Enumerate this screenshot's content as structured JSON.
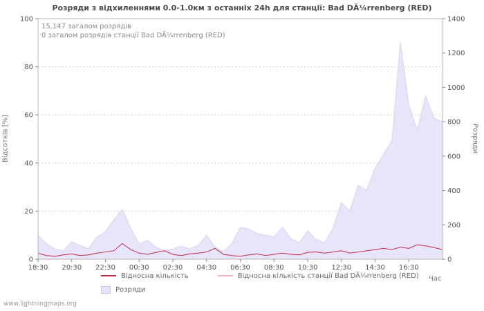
{
  "page": {
    "footer_link": "www.lightningmaps.org"
  },
  "chart_data": {
    "type": "area",
    "title": "Розряди з відхиленнями 0.0-1.0км з останніх 24h для станції: Bad DÃ¼rrenberg (RED)",
    "annotations": [
      "15,147 загалом розрядів",
      "0 загалом розрядів станції Bad DÃ¼rrenberg (RED)"
    ],
    "x_label": "Час",
    "y_left_label": "Відсотків  [%]",
    "y_right_label": "Розряди",
    "y_left_max": 100,
    "y_right_max": 1400,
    "y_left_ticks": [
      0,
      20,
      40,
      60,
      80,
      100
    ],
    "y_right_ticks": [
      0,
      200,
      400,
      600,
      800,
      1000,
      1200,
      1400
    ],
    "x_ticks": [
      "18:30",
      "20:30",
      "22:30",
      "00:30",
      "02:30",
      "04:30",
      "06:30",
      "08:30",
      "10:30",
      "12:30",
      "14:30",
      "16:30"
    ],
    "x_tick_interval_hours": 2,
    "x_span_hours": 24,
    "point_interval_hours": 0.5,
    "grid": "horizontal-dashed",
    "legend_position": "bottom",
    "series": [
      {
        "name": "Розряди",
        "kind": "area",
        "axis": "right",
        "color": "#e7e5fa",
        "edge": "#d6d2f2",
        "values": [
          140,
          90,
          60,
          50,
          100,
          80,
          60,
          130,
          160,
          230,
          290,
          180,
          90,
          110,
          70,
          50,
          60,
          75,
          60,
          80,
          140,
          70,
          45,
          90,
          185,
          175,
          150,
          140,
          130,
          185,
          120,
          95,
          165,
          115,
          95,
          180,
          330,
          280,
          430,
          400,
          530,
          610,
          690,
          1260,
          900,
          750,
          950,
          820,
          800
        ]
      },
      {
        "name": "Відносна кількість",
        "kind": "line",
        "axis": "left",
        "color": "#c62847",
        "values": [
          2.5,
          1.5,
          1.2,
          1.8,
          2.2,
          1.5,
          1.8,
          2.5,
          3,
          3.5,
          6.5,
          4,
          2.5,
          2,
          2.8,
          3.5,
          2,
          1.5,
          2.2,
          2.5,
          3,
          4.5,
          2,
          1.5,
          1.2,
          1.8,
          2.2,
          1.5,
          2,
          2.5,
          2,
          1.8,
          2.8,
          3,
          2.5,
          3,
          3.5,
          2.5,
          3,
          3.5,
          4,
          4.5,
          4,
          5,
          4.5,
          6,
          5.5,
          4.8,
          4
        ]
      },
      {
        "name": "Відносна кількість станції Bad DÃ¼rrenberg (RED)",
        "kind": "line",
        "axis": "left",
        "color": "#f1afc0",
        "values": [
          0,
          0,
          0,
          0,
          0,
          0,
          0,
          0,
          0,
          0,
          0,
          0,
          0,
          0,
          0,
          0,
          0,
          0,
          0,
          0,
          0,
          0,
          0,
          0,
          0,
          0,
          0,
          0,
          0,
          0,
          0,
          0,
          0,
          0,
          0,
          0,
          0,
          0,
          0,
          0,
          0,
          0,
          0,
          0,
          0,
          0,
          0,
          0,
          0
        ]
      }
    ]
  }
}
